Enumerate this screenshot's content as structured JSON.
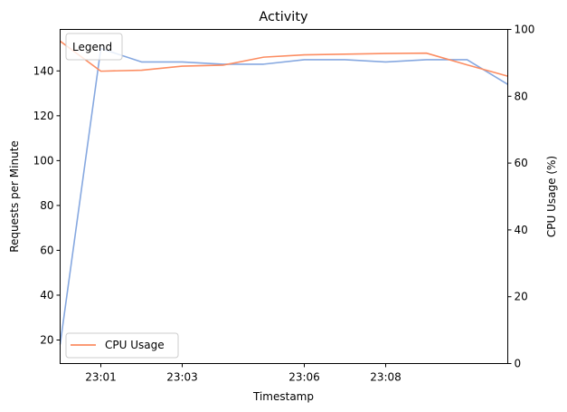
{
  "chart_data": {
    "type": "line",
    "title": "Activity",
    "xlabel": "Timestamp",
    "ylabel_left": "Requests per Minute",
    "ylabel_right": "CPU Usage (%)",
    "x": [
      "23:00",
      "23:01",
      "23:02",
      "23:03",
      "23:04",
      "23:05",
      "23:06",
      "23:07",
      "23:08",
      "23:09",
      "23:10",
      "23:11"
    ],
    "x_ticks": [
      "23:01",
      "23:03",
      "23:06",
      "23:08"
    ],
    "ylim_left": [
      9.5,
      158.5
    ],
    "yticks_left": [
      20,
      40,
      60,
      80,
      100,
      120,
      140
    ],
    "ylim_right": [
      0,
      100
    ],
    "yticks_right": [
      0,
      20,
      40,
      60,
      80,
      100
    ],
    "series": [
      {
        "axis": "left",
        "color": "#86a8e0",
        "values": [
          18,
          150,
          144,
          144,
          143,
          143,
          145,
          145,
          144,
          145,
          145,
          134
        ]
      },
      {
        "axis": "right",
        "name": "CPU Usage",
        "color": "#fc8d62",
        "values": [
          96.5,
          87.5,
          87.8,
          89.0,
          89.3,
          91.7,
          92.4,
          92.6,
          92.8,
          92.9,
          89.4,
          86.0
        ]
      }
    ],
    "legend": {
      "title": "Legend",
      "title_position": "top-left",
      "entries_position": "bottom-left"
    },
    "grid": false
  }
}
